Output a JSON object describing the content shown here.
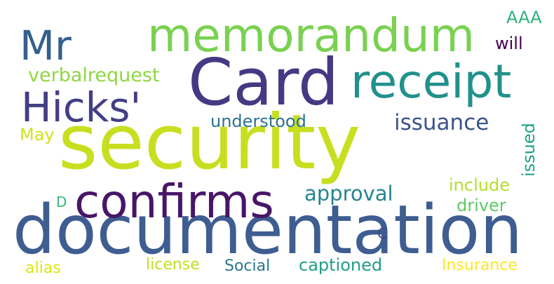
{
  "words": [
    {
      "id": "security",
      "text": "security",
      "color": "#c8df21"
    },
    {
      "id": "documentation",
      "text": "documentation",
      "color": "#3e5d91"
    },
    {
      "id": "card",
      "text": "Card",
      "color": "#443a83"
    },
    {
      "id": "memorandum",
      "text": "memorandum",
      "color": "#7ad151"
    },
    {
      "id": "receipt",
      "text": "receipt",
      "color": "#21918c"
    },
    {
      "id": "confirms",
      "text": "confirms",
      "color": "#481668"
    },
    {
      "id": "hicks",
      "text": "Hicks'",
      "color": "#433e85"
    },
    {
      "id": "mr",
      "text": "Mr",
      "color": "#355f8d"
    },
    {
      "id": "verbalrequest",
      "text": "verbalrequest",
      "color": "#8fd744"
    },
    {
      "id": "issuance",
      "text": "issuance",
      "color": "#3b528b"
    },
    {
      "id": "understood",
      "text": "understood",
      "color": "#2c728e"
    },
    {
      "id": "approval",
      "text": "approval",
      "color": "#24868e"
    },
    {
      "id": "include",
      "text": "include",
      "color": "#b5de2b"
    },
    {
      "id": "driver",
      "text": "driver",
      "color": "#5ec962"
    },
    {
      "id": "issued",
      "text": "issued",
      "color": "#1fa187"
    },
    {
      "id": "aaa",
      "text": "AAA",
      "color": "#2db27d"
    },
    {
      "id": "will",
      "text": "will",
      "color": "#440154"
    },
    {
      "id": "may",
      "text": "May",
      "color": "#d2e21b"
    },
    {
      "id": "d",
      "text": "D",
      "color": "#37b878"
    },
    {
      "id": "c",
      "text": "C",
      "color": "#414487"
    },
    {
      "id": "alias",
      "text": "alias",
      "color": "#dde318"
    },
    {
      "id": "license",
      "text": "license",
      "color": "#c2df23"
    },
    {
      "id": "social",
      "text": "Social",
      "color": "#2a788e"
    },
    {
      "id": "captioned",
      "text": "captioned",
      "color": "#1f9e89"
    },
    {
      "id": "insurance",
      "text": "Insurance",
      "color": "#fde725"
    }
  ]
}
